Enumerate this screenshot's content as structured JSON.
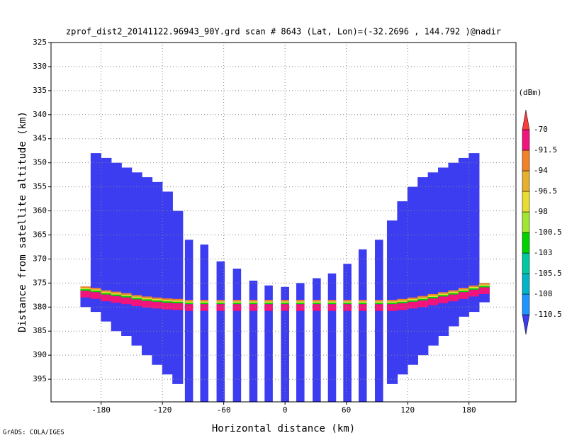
{
  "chart_data": {
    "type": "profile",
    "title": "zprof_dist2_20141122.96943_90Y.grd  scan # 8643  (Lat, Lon)=(-32.2696 , 144.792 )@nadir",
    "x_label": "Horizontal distance (km)",
    "y_label": "Distance from satellite altitude (km)",
    "colorbar_label": "(dBm)",
    "credit": "GrADS: COLA/IGES",
    "xlim": [
      -229,
      226
    ],
    "ylim": [
      325,
      399.7
    ],
    "y_reversed": true,
    "xticks": [
      -180,
      -120,
      -60,
      0,
      60,
      120,
      180
    ],
    "yticks": [
      325,
      330,
      335,
      340,
      345,
      350,
      355,
      360,
      365,
      370,
      375,
      380,
      385,
      390,
      395
    ],
    "grid": true,
    "levels": [
      -110.5,
      -108,
      -105.5,
      -103,
      -100.5,
      -98,
      -96.5,
      -94,
      -91.5,
      -70
    ],
    "colors": [
      "#3c3cf0",
      "#1e96ff",
      "#00b4c8",
      "#00c8a0",
      "#00d200",
      "#a0e632",
      "#e6dc32",
      "#e6af2d",
      "#f08228",
      "#f0147c",
      "#fa3c3c"
    ],
    "columns": [
      {
        "x": -195,
        "top": 376,
        "bottom": 380,
        "surface": 377.2
      },
      {
        "x": -185,
        "top": 348,
        "bottom": 381,
        "surface": 377.5
      },
      {
        "x": -175,
        "top": 349,
        "bottom": 383,
        "surface": 378
      },
      {
        "x": -165,
        "top": 350,
        "bottom": 385,
        "surface": 378.3
      },
      {
        "x": -155,
        "top": 351,
        "bottom": 386,
        "surface": 378.6
      },
      {
        "x": -145,
        "top": 352,
        "bottom": 388,
        "surface": 379
      },
      {
        "x": -135,
        "top": 353,
        "bottom": 390,
        "surface": 379.3
      },
      {
        "x": -125,
        "top": 354,
        "bottom": 392,
        "surface": 379.5
      },
      {
        "x": -115,
        "top": 356,
        "bottom": 394,
        "surface": 379.7
      },
      {
        "x": -105,
        "top": 360,
        "bottom": 396,
        "surface": 379.8
      },
      {
        "x": -94,
        "top": 366,
        "bottom": 399.7,
        "surface": 380
      },
      {
        "x": -79,
        "top": 367,
        "bottom": 399.7,
        "surface": 380
      },
      {
        "x": -63,
        "top": 370.5,
        "bottom": 399.7,
        "surface": 380
      },
      {
        "x": -47,
        "top": 372,
        "bottom": 399.7,
        "surface": 380
      },
      {
        "x": -31,
        "top": 374.5,
        "bottom": 399.7,
        "surface": 380
      },
      {
        "x": -16,
        "top": 375.5,
        "bottom": 399.7,
        "surface": 380
      },
      {
        "x": 0,
        "top": 375.8,
        "bottom": 399.7,
        "surface": 380
      },
      {
        "x": 15,
        "top": 375,
        "bottom": 399.7,
        "surface": 380
      },
      {
        "x": 31,
        "top": 374,
        "bottom": 399.7,
        "surface": 380
      },
      {
        "x": 46,
        "top": 373,
        "bottom": 399.7,
        "surface": 380
      },
      {
        "x": 61,
        "top": 371,
        "bottom": 399.7,
        "surface": 380
      },
      {
        "x": 76,
        "top": 368,
        "bottom": 399.7,
        "surface": 380
      },
      {
        "x": 92,
        "top": 366,
        "bottom": 399.7,
        "surface": 380
      },
      {
        "x": 105,
        "top": 362,
        "bottom": 396,
        "surface": 380
      },
      {
        "x": 115,
        "top": 358,
        "bottom": 394,
        "surface": 379.8
      },
      {
        "x": 125,
        "top": 355,
        "bottom": 392,
        "surface": 379.5
      },
      {
        "x": 135,
        "top": 353,
        "bottom": 390,
        "surface": 379.2
      },
      {
        "x": 145,
        "top": 352,
        "bottom": 388,
        "surface": 378.8
      },
      {
        "x": 155,
        "top": 351,
        "bottom": 386,
        "surface": 378.4
      },
      {
        "x": 165,
        "top": 350,
        "bottom": 384,
        "surface": 378
      },
      {
        "x": 175,
        "top": 349,
        "bottom": 382,
        "surface": 377.5
      },
      {
        "x": 185,
        "top": 348,
        "bottom": 381,
        "surface": 377
      },
      {
        "x": 195,
        "top": 375,
        "bottom": 379,
        "surface": 376.5
      }
    ]
  }
}
